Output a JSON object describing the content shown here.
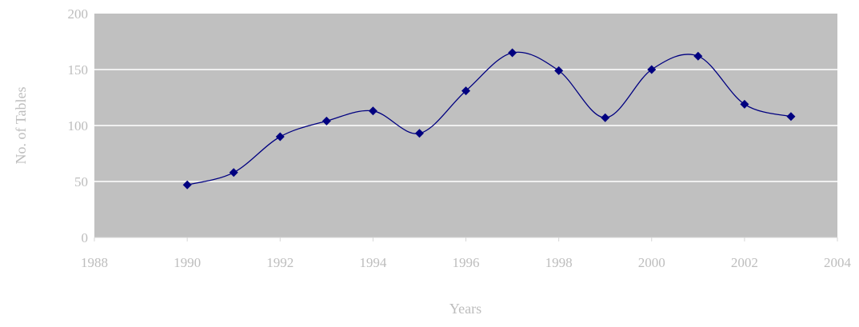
{
  "chart_data": {
    "type": "line",
    "title": "",
    "xlabel": "Years",
    "ylabel": "No. of Tables",
    "xlim": [
      1988,
      2004
    ],
    "ylim": [
      0,
      200
    ],
    "x_ticks": [
      "1988",
      "1990",
      "1992",
      "1994",
      "1996",
      "1998",
      "2000",
      "2002",
      "2004"
    ],
    "y_ticks": [
      "0",
      "50",
      "100",
      "150",
      "200"
    ],
    "grid": "horizontal",
    "legend": "none",
    "smooth": true,
    "series": [
      {
        "x": [
          1990,
          1991,
          1992,
          1993,
          1994,
          1995,
          1996,
          1997,
          1998,
          1999,
          2000,
          2001,
          2002,
          2003
        ],
        "values": [
          47,
          58,
          90,
          104,
          113,
          93,
          131,
          165,
          149,
          107,
          150,
          162,
          119,
          108
        ],
        "color": "#000080",
        "marker": "diamond"
      }
    ],
    "colors": {
      "plot_background": "#c0c0c0",
      "gridline": "#ffffff",
      "axis_text": "#bdbdbd"
    }
  }
}
